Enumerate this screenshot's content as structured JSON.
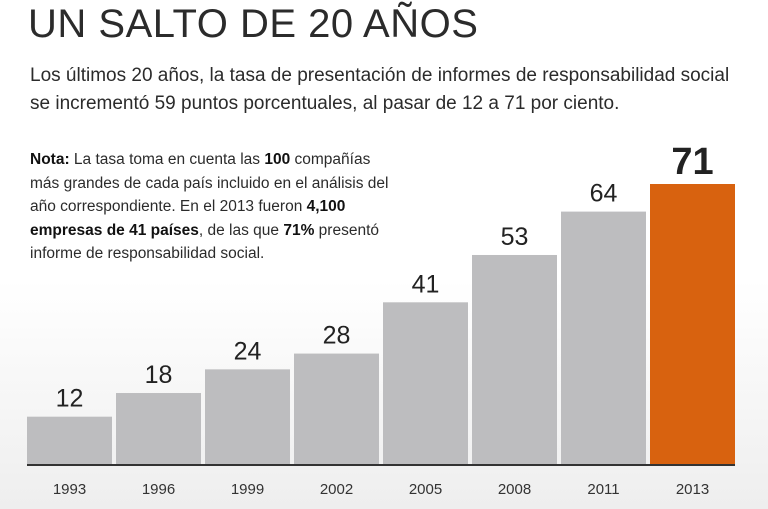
{
  "title": "UN SALTO DE 20 AÑOS",
  "subtitle": "Los últimos 20 años, la tasa de presentación de informes de responsabilidad social se incrementó 59 puntos porcentuales, al pasar de 12 a 71 por ciento.",
  "note": {
    "label": "Nota:",
    "t1": " La tasa toma en cuenta las ",
    "b1": "100",
    "t2": " compañías más grandes de cada país incluido en el análisis del año correspondiente. En el 2013 fueron ",
    "b2": "4,100 empresas de 41 países",
    "t3": ", de las que ",
    "b3": "71%",
    "t4": " presentó informe de responsabilidad social."
  },
  "colors": {
    "bar": "#bdbdbf",
    "highlight": "#d8620f",
    "label": "#222222",
    "axis": "#333333"
  },
  "chart_data": {
    "type": "bar",
    "title": "UN SALTO DE 20 AÑOS",
    "xlabel": "",
    "ylabel": "",
    "categories": [
      "1993",
      "1996",
      "1999",
      "2002",
      "2005",
      "2008",
      "2011",
      "2013"
    ],
    "values": [
      12,
      18,
      24,
      28,
      41,
      53,
      64,
      71
    ],
    "highlight_index": 7,
    "ylim": [
      0,
      71
    ],
    "grid": false,
    "legend": "none"
  }
}
